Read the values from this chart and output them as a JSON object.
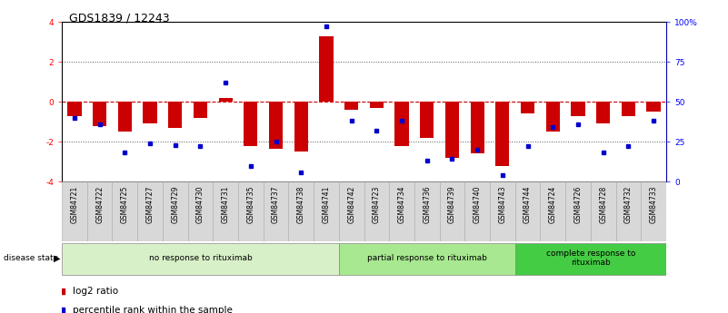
{
  "title": "GDS1839 / 12243",
  "samples": [
    "GSM84721",
    "GSM84722",
    "GSM84725",
    "GSM84727",
    "GSM84729",
    "GSM84730",
    "GSM84731",
    "GSM84735",
    "GSM84737",
    "GSM84738",
    "GSM84741",
    "GSM84742",
    "GSM84723",
    "GSM84734",
    "GSM84736",
    "GSM84739",
    "GSM84740",
    "GSM84743",
    "GSM84744",
    "GSM84724",
    "GSM84726",
    "GSM84728",
    "GSM84732",
    "GSM84733"
  ],
  "log2_ratio": [
    -0.7,
    -1.2,
    -1.5,
    -1.1,
    -1.3,
    -0.8,
    0.2,
    -2.2,
    -2.35,
    -2.5,
    3.3,
    -0.4,
    -0.3,
    -2.2,
    -1.8,
    -2.8,
    -2.6,
    -3.2,
    -0.6,
    -1.5,
    -0.7,
    -1.1,
    -0.7,
    -0.5
  ],
  "percentile_rank": [
    40,
    36,
    18,
    24,
    23,
    22,
    62,
    10,
    25,
    6,
    97,
    38,
    32,
    38,
    13,
    14,
    20,
    4,
    22,
    34,
    36,
    18,
    22,
    38
  ],
  "groups": [
    {
      "label": "no response to rituximab",
      "start": 0,
      "end": 11,
      "color": "#d8f0c8"
    },
    {
      "label": "partial response to rituximab",
      "start": 11,
      "end": 18,
      "color": "#a8e890"
    },
    {
      "label": "complete response to\nrituximab",
      "start": 18,
      "end": 24,
      "color": "#44cc44"
    }
  ],
  "ylim_left": [
    -4,
    4
  ],
  "ylim_right": [
    0,
    100
  ],
  "yticks_left": [
    -4,
    -2,
    0,
    2,
    4
  ],
  "yticks_right": [
    0,
    25,
    50,
    75,
    100
  ],
  "ytick_labels_right": [
    "0",
    "25",
    "50",
    "75",
    "100%"
  ],
  "bar_color": "#cc0000",
  "dot_color": "#0000cc",
  "hline_color": "#cc0000",
  "grid_color": "#555555",
  "bg_color": "#ffffff",
  "title_fontsize": 9,
  "tick_fontsize": 6.5,
  "label_fontsize": 7,
  "legend_fontsize": 7.5
}
